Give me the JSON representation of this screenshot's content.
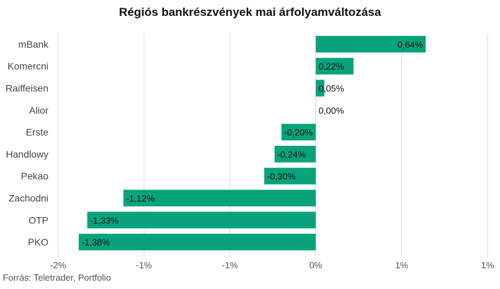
{
  "title": "Régiós bankrészvények mai árfolyamváltozása",
  "source": "Forrás: Teletrader, Portfolio",
  "colors": {
    "bar": "#08a37a",
    "grid": "#d9d9d9",
    "text": "#333333"
  },
  "chart_data": {
    "type": "bar",
    "orientation": "horizontal",
    "title": "Régiós bankrészvények mai árfolyamváltozása",
    "categories": [
      "mBank",
      "Komercni",
      "Raiffeisen",
      "Alior",
      "Erste",
      "Handlowy",
      "Pekao",
      "Zachodni",
      "OTP",
      "PKO"
    ],
    "values": [
      0.64,
      0.22,
      0.05,
      0.0,
      -0.2,
      -0.24,
      -0.3,
      -1.12,
      -1.33,
      -1.38
    ],
    "value_labels": [
      "0,64%",
      "0,22%",
      "0,05%",
      "0,00%",
      "-0,20%",
      "-0,24%",
      "-0,30%",
      "-1,12%",
      "-1,33%",
      "-1,38%"
    ],
    "xlim": [
      -1.5,
      1.0
    ],
    "ticks": [
      -1.5,
      -1.0,
      -0.5,
      0.0,
      0.5,
      1.0
    ],
    "tick_labels": [
      "-2%",
      "-1%",
      "-1%",
      "0%",
      "1%",
      "1%"
    ],
    "grid": true,
    "legend": "none"
  }
}
